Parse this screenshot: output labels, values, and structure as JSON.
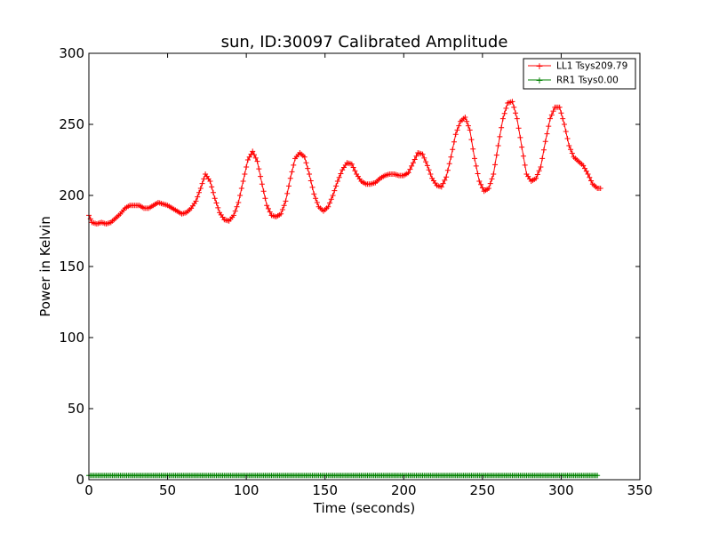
{
  "chart_data": {
    "type": "line",
    "title": "sun, ID:30097 Calibrated Amplitude",
    "xlabel": "Time (seconds)",
    "ylabel": "Power in Kelvin",
    "xlim": [
      0,
      350
    ],
    "ylim": [
      0,
      300
    ],
    "xticks": [
      "0",
      "50",
      "100",
      "150",
      "200",
      "250",
      "300",
      "350"
    ],
    "yticks": [
      "0",
      "50",
      "100",
      "150",
      "200",
      "250",
      "300"
    ],
    "grid": false,
    "legend_position": "top-right",
    "series": [
      {
        "name": "LL1 Tsys209.79",
        "color": "#ff0000",
        "marker": "+",
        "points": [
          [
            0,
            186
          ],
          [
            2,
            181
          ],
          [
            5,
            180
          ],
          [
            8,
            181
          ],
          [
            11,
            180
          ],
          [
            14,
            181
          ],
          [
            17,
            184
          ],
          [
            20,
            187
          ],
          [
            23,
            191
          ],
          [
            26,
            193
          ],
          [
            29,
            193
          ],
          [
            32,
            193
          ],
          [
            35,
            191
          ],
          [
            38,
            191
          ],
          [
            41,
            193
          ],
          [
            44,
            195
          ],
          [
            47,
            194
          ],
          [
            50,
            193
          ],
          [
            53,
            191
          ],
          [
            56,
            189
          ],
          [
            59,
            187
          ],
          [
            62,
            188
          ],
          [
            65,
            191
          ],
          [
            68,
            196
          ],
          [
            71,
            205
          ],
          [
            74,
            215
          ],
          [
            77,
            210
          ],
          [
            80,
            198
          ],
          [
            83,
            188
          ],
          [
            86,
            183
          ],
          [
            89,
            182
          ],
          [
            92,
            186
          ],
          [
            95,
            195
          ],
          [
            98,
            210
          ],
          [
            101,
            225
          ],
          [
            104,
            231
          ],
          [
            107,
            224
          ],
          [
            110,
            208
          ],
          [
            113,
            193
          ],
          [
            116,
            186
          ],
          [
            119,
            185
          ],
          [
            122,
            187
          ],
          [
            125,
            196
          ],
          [
            128,
            212
          ],
          [
            131,
            226
          ],
          [
            134,
            230
          ],
          [
            137,
            227
          ],
          [
            140,
            215
          ],
          [
            143,
            201
          ],
          [
            146,
            192
          ],
          [
            149,
            189
          ],
          [
            152,
            192
          ],
          [
            155,
            200
          ],
          [
            158,
            210
          ],
          [
            161,
            218
          ],
          [
            164,
            223
          ],
          [
            167,
            222
          ],
          [
            170,
            215
          ],
          [
            173,
            210
          ],
          [
            176,
            208
          ],
          [
            179,
            208
          ],
          [
            182,
            209
          ],
          [
            185,
            212
          ],
          [
            188,
            214
          ],
          [
            191,
            215
          ],
          [
            194,
            215
          ],
          [
            197,
            214
          ],
          [
            200,
            214
          ],
          [
            203,
            216
          ],
          [
            206,
            223
          ],
          [
            209,
            230
          ],
          [
            212,
            229
          ],
          [
            215,
            221
          ],
          [
            218,
            212
          ],
          [
            221,
            207
          ],
          [
            224,
            206
          ],
          [
            227,
            213
          ],
          [
            230,
            227
          ],
          [
            233,
            243
          ],
          [
            236,
            252
          ],
          [
            239,
            255
          ],
          [
            242,
            246
          ],
          [
            245,
            226
          ],
          [
            248,
            210
          ],
          [
            251,
            203
          ],
          [
            254,
            205
          ],
          [
            257,
            215
          ],
          [
            260,
            235
          ],
          [
            263,
            254
          ],
          [
            266,
            265
          ],
          [
            269,
            266
          ],
          [
            272,
            254
          ],
          [
            275,
            234
          ],
          [
            278,
            215
          ],
          [
            281,
            210
          ],
          [
            284,
            212
          ],
          [
            287,
            220
          ],
          [
            290,
            238
          ],
          [
            293,
            254
          ],
          [
            296,
            262
          ],
          [
            299,
            262
          ],
          [
            302,
            250
          ],
          [
            305,
            235
          ],
          [
            308,
            227
          ],
          [
            311,
            224
          ],
          [
            314,
            221
          ],
          [
            317,
            215
          ],
          [
            320,
            208
          ],
          [
            323,
            205
          ],
          [
            325,
            205
          ]
        ]
      },
      {
        "name": "RR1 Tsys0.00",
        "color": "#008000",
        "marker": "+",
        "points": [
          [
            0,
            3
          ],
          [
            323,
            3
          ]
        ]
      }
    ]
  }
}
